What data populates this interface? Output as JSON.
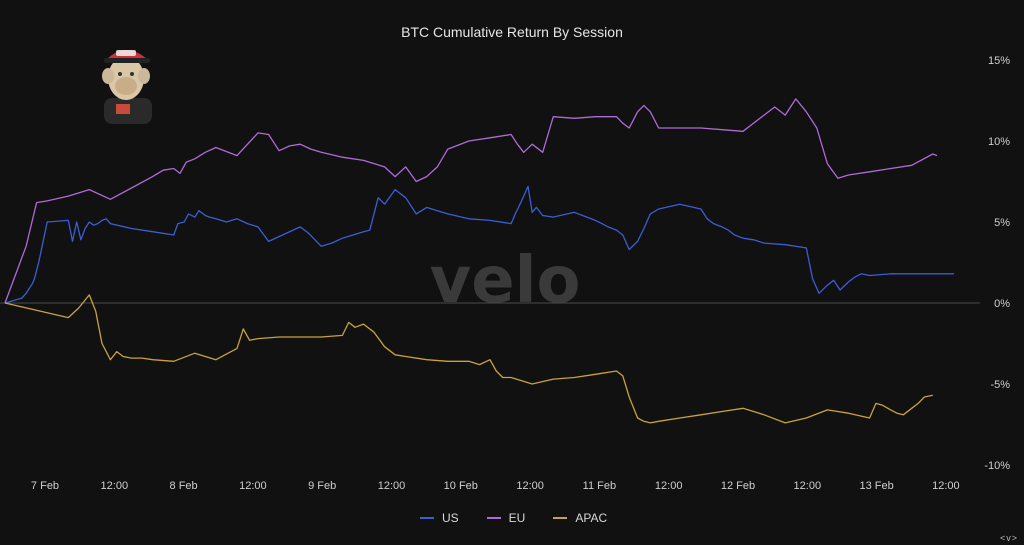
{
  "chart_data": {
    "type": "line",
    "title": "BTC Cumulative Return By Session",
    "xlabel": "",
    "ylabel": "",
    "x_ticks": [
      "7 Feb",
      "12:00",
      "8 Feb",
      "12:00",
      "9 Feb",
      "12:00",
      "10 Feb",
      "12:00",
      "11 Feb",
      "12:00",
      "12 Feb",
      "12:00",
      "13 Feb",
      "12:00"
    ],
    "y_ticks": [
      "15%",
      "10%",
      "5%",
      "0%",
      "-5%",
      "-10%"
    ],
    "ylim": [
      -10,
      15
    ],
    "watermark": "velo",
    "legend_position": "bottom-center",
    "series": [
      {
        "name": "US",
        "color": "#3b5ed6",
        "x": [
          0,
          0.8,
          1,
          1.1,
          1.2,
          1.3,
          1.4,
          1.5,
          1.6,
          2,
          3,
          3.2,
          3.4,
          3.6,
          3.8,
          4,
          4.2,
          4.4,
          4.6,
          4.8,
          5,
          6,
          7,
          8,
          8.2,
          8.5,
          8.7,
          9,
          9.2,
          9.5,
          9.7,
          10,
          10.5,
          11,
          11.5,
          12,
          12.5,
          14,
          14.4,
          15,
          15.5,
          16,
          16.5,
          17,
          17.3,
          17.5,
          17.7,
          18,
          18.5,
          19,
          19.5,
          20,
          20.5,
          21,
          22,
          23,
          24,
          24.2,
          24.5,
          24.8,
          25,
          25.2,
          25.5,
          26,
          27,
          28,
          28.3,
          28.6,
          29,
          29.3,
          29.6,
          30,
          30.3,
          30.6,
          31,
          32,
          33,
          33.3,
          33.6,
          34,
          34.3,
          34.6,
          35,
          35.5,
          36,
          37,
          38,
          38.3,
          38.6,
          39,
          39.3,
          39.6,
          40,
          40.3,
          40.6,
          41,
          42,
          43,
          43.3,
          43.6,
          44,
          44.3,
          44.6,
          45
        ],
        "y": [
          0,
          0.3,
          0.6,
          0.8,
          1,
          1.2,
          1.5,
          2,
          2.5,
          5,
          5.1,
          3.8,
          5,
          3.9,
          4.6,
          5,
          4.8,
          4.9,
          5.1,
          5.2,
          4.9,
          4.6,
          4.4,
          4.2,
          4.9,
          5,
          5.5,
          5.3,
          5.7,
          5.4,
          5.3,
          5.2,
          5,
          5.2,
          4.9,
          4.7,
          3.8,
          4.7,
          4.3,
          3.5,
          3.7,
          4,
          4.2,
          4.4,
          4.5,
          5.5,
          6.5,
          6.1,
          7,
          6.5,
          5.5,
          5.9,
          5.7,
          5.5,
          5.2,
          5.1,
          4.9,
          5.5,
          6.3,
          7.2,
          5.6,
          5.9,
          5.4,
          5.3,
          5.6,
          5.1,
          4.9,
          4.7,
          4.5,
          4.2,
          3.3,
          3.8,
          4.6,
          5.5,
          5.8,
          6.1,
          5.8,
          5.2,
          4.9,
          4.7,
          4.5,
          4.2,
          4,
          3.9,
          3.7,
          3.6,
          3.4,
          1.5,
          0.6,
          1.1,
          1.4,
          0.8,
          1.3,
          1.6,
          1.8,
          1.7,
          1.8,
          1.8,
          1.8,
          1.8,
          1.8,
          1.8,
          1.8,
          1.8
        ]
      },
      {
        "name": "EU",
        "color": "#b06ad8",
        "x": [
          0,
          1,
          1.5,
          2,
          3,
          4,
          5,
          6,
          7,
          7.5,
          8,
          8.3,
          8.6,
          9,
          9.5,
          10,
          11,
          12,
          12.5,
          13,
          13.5,
          14,
          14.5,
          15,
          16,
          17,
          18,
          18.5,
          19,
          19.5,
          20,
          20.5,
          21,
          22,
          23,
          24,
          24.3,
          24.6,
          25,
          25.5,
          26,
          27,
          28,
          29,
          29.3,
          29.6,
          30,
          30.3,
          30.6,
          31,
          32,
          33,
          34,
          35,
          36,
          36.5,
          37,
          37.5,
          38,
          38.5,
          39,
          39.5,
          40,
          41,
          42,
          43,
          44,
          44.2
        ],
        "y": [
          0,
          3.5,
          6.2,
          6.3,
          6.6,
          7,
          6.4,
          7.1,
          7.8,
          8.2,
          8.3,
          8,
          8.7,
          8.9,
          9.3,
          9.6,
          9.1,
          10.5,
          10.4,
          9.4,
          9.7,
          9.8,
          9.5,
          9.3,
          9,
          8.8,
          8.4,
          7.8,
          8.4,
          7.5,
          7.8,
          8.4,
          9.5,
          10,
          10.2,
          10.4,
          9.8,
          9.3,
          9.8,
          9.3,
          11.5,
          11.4,
          11.5,
          11.5,
          11.1,
          10.8,
          11.8,
          12.2,
          11.8,
          10.8,
          10.8,
          10.8,
          10.7,
          10.6,
          11.6,
          12.1,
          11.6,
          12.6,
          11.8,
          10.8,
          8.6,
          7.7,
          7.9,
          8.1,
          8.3,
          8.5,
          9.2,
          9.1
        ]
      },
      {
        "name": "APAC",
        "color": "#c9a240",
        "x": [
          0,
          1,
          2,
          3,
          3.5,
          4,
          4.3,
          4.6,
          5,
          5.3,
          5.6,
          6,
          6.5,
          7,
          8,
          9,
          10,
          11,
          11.3,
          11.6,
          12,
          13,
          14,
          15,
          16,
          16.3,
          16.6,
          17,
          17.5,
          18,
          18.5,
          19,
          20,
          21,
          22,
          22.5,
          23,
          23.3,
          23.6,
          24,
          25,
          26,
          27,
          28,
          29,
          29.3,
          29.6,
          30,
          30.3,
          30.6,
          31,
          32,
          33,
          34,
          35,
          36,
          37,
          38,
          39,
          40,
          41,
          41.3,
          41.6,
          42,
          42.3,
          42.6,
          43,
          43.3,
          43.6,
          44
        ],
        "y": [
          0,
          -0.3,
          -0.6,
          -0.9,
          -0.3,
          0.5,
          -0.5,
          -2.5,
          -3.5,
          -3,
          -3.3,
          -3.4,
          -3.4,
          -3.5,
          -3.6,
          -3.1,
          -3.5,
          -2.8,
          -1.6,
          -2.3,
          -2.2,
          -2.1,
          -2.1,
          -2.1,
          -2,
          -1.2,
          -1.5,
          -1.3,
          -1.8,
          -2.7,
          -3.2,
          -3.3,
          -3.5,
          -3.6,
          -3.6,
          -3.8,
          -3.5,
          -4.2,
          -4.6,
          -4.6,
          -5,
          -4.7,
          -4.6,
          -4.4,
          -4.2,
          -4.5,
          -5.8,
          -7.1,
          -7.3,
          -7.4,
          -7.3,
          -7.1,
          -6.9,
          -6.7,
          -6.5,
          -6.9,
          -7.4,
          -7.1,
          -6.6,
          -6.8,
          -7.1,
          -6.2,
          -6.3,
          -6.6,
          -6.8,
          -6.9,
          -6.5,
          -6.2,
          -5.8,
          -5.7
        ]
      }
    ]
  }
}
